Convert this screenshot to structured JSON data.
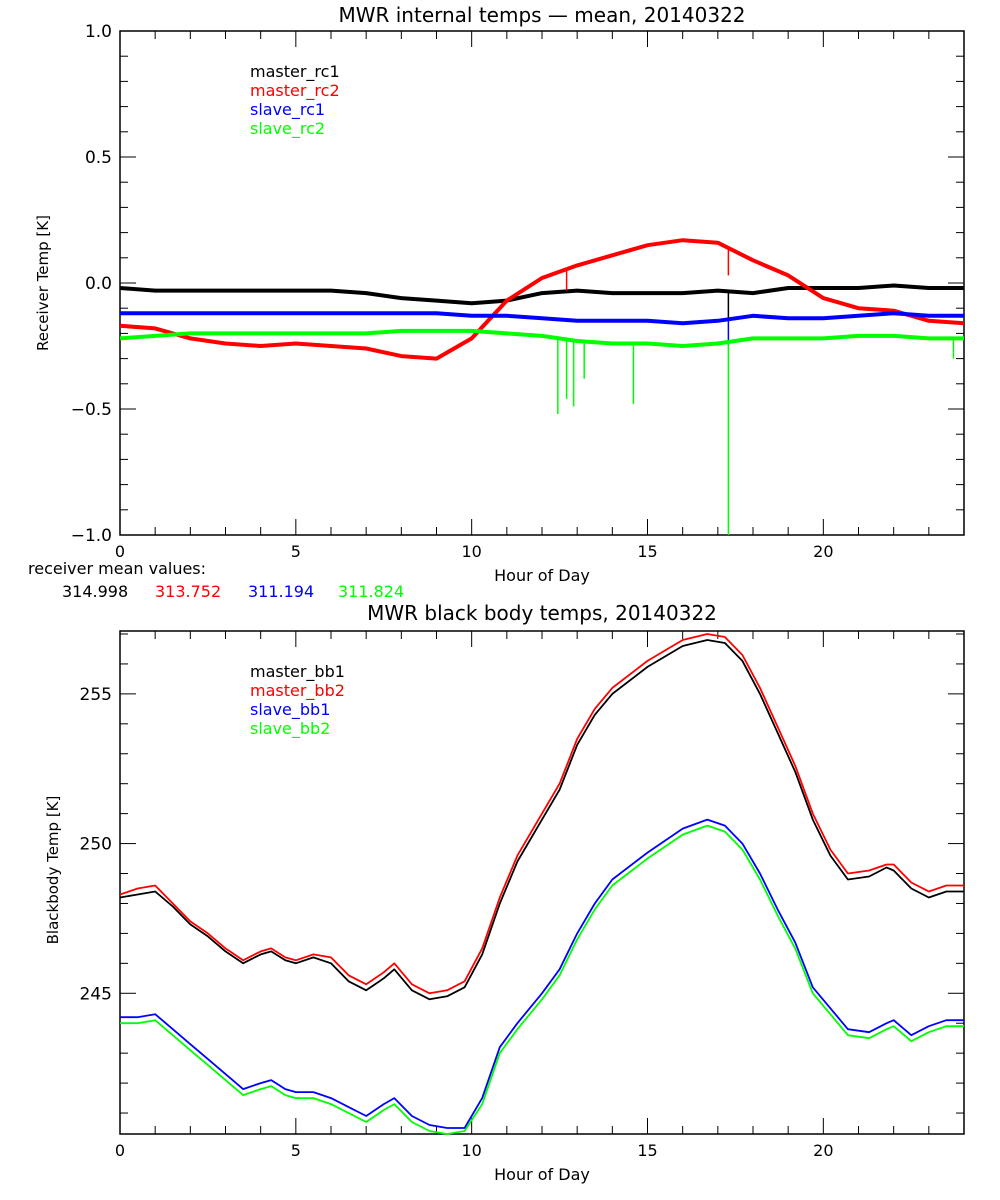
{
  "chart_data": [
    {
      "type": "line",
      "title": "MWR internal temps — mean, 20140322",
      "xlabel": "Hour of Day",
      "ylabel": "Receiver Temp [K]",
      "xlim": [
        0,
        24
      ],
      "ylim": [
        -1.0,
        1.0
      ],
      "xticks": [
        0,
        5,
        10,
        15,
        20
      ],
      "xtick_labels": [
        "0",
        "5",
        "10",
        "15",
        "20"
      ],
      "yticks": [
        -1.0,
        -0.5,
        0.0,
        0.5,
        1.0
      ],
      "ytick_labels": [
        "−1.0",
        "−0.5",
        "0.0",
        "0.5",
        "1.0"
      ],
      "grid": false,
      "legend_position": "top-left",
      "x": [
        0,
        1,
        2,
        3,
        4,
        5,
        6,
        7,
        8,
        9,
        10,
        11,
        12,
        13,
        14,
        15,
        16,
        17,
        18,
        19,
        20,
        21,
        22,
        23,
        24
      ],
      "series": [
        {
          "name": "master_rc1",
          "color": "#000000",
          "values": [
            -0.02,
            -0.03,
            -0.03,
            -0.03,
            -0.03,
            -0.03,
            -0.03,
            -0.04,
            -0.06,
            -0.07,
            -0.08,
            -0.07,
            -0.04,
            -0.03,
            -0.04,
            -0.04,
            -0.04,
            -0.03,
            -0.04,
            -0.02,
            -0.02,
            -0.02,
            -0.01,
            -0.02,
            -0.02
          ],
          "spikes": [
            {
              "x": 17.3,
              "y": -0.15
            }
          ]
        },
        {
          "name": "master_rc2",
          "color": "#ff0000",
          "values": [
            -0.17,
            -0.18,
            -0.22,
            -0.24,
            -0.25,
            -0.24,
            -0.25,
            -0.26,
            -0.29,
            -0.3,
            -0.22,
            -0.07,
            0.02,
            0.07,
            0.11,
            0.15,
            0.17,
            0.16,
            0.09,
            0.03,
            -0.06,
            -0.1,
            -0.11,
            -0.15,
            -0.16
          ],
          "spikes": [
            {
              "x": 17.3,
              "y": 0.03
            },
            {
              "x": 12.7,
              "y": -0.03
            }
          ]
        },
        {
          "name": "slave_rc1",
          "color": "#0000ff",
          "values": [
            -0.12,
            -0.12,
            -0.12,
            -0.12,
            -0.12,
            -0.12,
            -0.12,
            -0.12,
            -0.12,
            -0.12,
            -0.13,
            -0.13,
            -0.14,
            -0.15,
            -0.15,
            -0.15,
            -0.16,
            -0.15,
            -0.13,
            -0.14,
            -0.14,
            -0.13,
            -0.12,
            -0.13,
            -0.13
          ],
          "spikes": [
            {
              "x": 17.3,
              "y": -0.25
            }
          ]
        },
        {
          "name": "slave_rc2",
          "color": "#00ff00",
          "values": [
            -0.22,
            -0.21,
            -0.2,
            -0.2,
            -0.2,
            -0.2,
            -0.2,
            -0.2,
            -0.19,
            -0.19,
            -0.19,
            -0.2,
            -0.21,
            -0.23,
            -0.24,
            -0.24,
            -0.25,
            -0.24,
            -0.22,
            -0.22,
            -0.22,
            -0.21,
            -0.21,
            -0.22,
            -0.22
          ],
          "spikes": [
            {
              "x": 12.45,
              "y": -0.52
            },
            {
              "x": 12.7,
              "y": -0.46
            },
            {
              "x": 12.9,
              "y": -0.49
            },
            {
              "x": 13.2,
              "y": -0.38
            },
            {
              "x": 14.6,
              "y": -0.48
            },
            {
              "x": 17.3,
              "y": -1.0
            },
            {
              "x": 23.7,
              "y": -0.3
            }
          ]
        }
      ],
      "annotations": {
        "label": "receiver mean values:",
        "values": [
          {
            "text": "314.998",
            "color": "#000000"
          },
          {
            "text": "313.752",
            "color": "#ff0000"
          },
          {
            "text": "311.194",
            "color": "#0000ff"
          },
          {
            "text": "311.824",
            "color": "#00ff00"
          }
        ]
      }
    },
    {
      "type": "line",
      "title": "MWR black body temps, 20140322",
      "xlabel": "Hour of Day",
      "ylabel": "Blackbody Temp [K]",
      "xlim": [
        0,
        24
      ],
      "ylim": [
        240.3,
        257.1
      ],
      "xticks": [
        0,
        5,
        10,
        15,
        20
      ],
      "xtick_labels": [
        "0",
        "5",
        "10",
        "15",
        "20"
      ],
      "yticks": [
        245,
        250,
        255
      ],
      "ytick_labels": [
        "245",
        "250",
        "255"
      ],
      "grid": false,
      "legend_position": "top-left",
      "x": [
        0,
        0.5,
        1,
        1.5,
        2,
        2.5,
        3,
        3.5,
        4,
        4.3,
        4.7,
        5,
        5.5,
        6,
        6.5,
        7,
        7.5,
        7.8,
        8.3,
        8.8,
        9.3,
        9.8,
        10.3,
        10.8,
        11.3,
        12,
        12.5,
        13,
        13.5,
        14,
        15,
        16,
        16.7,
        17.2,
        17.7,
        18.2,
        18.7,
        19.2,
        19.7,
        20.2,
        20.7,
        21.3,
        21.8,
        22,
        22.5,
        23,
        23.5,
        24
      ],
      "series": [
        {
          "name": "master_bb1",
          "color": "#000000",
          "values": [
            248.2,
            248.3,
            248.4,
            247.9,
            247.3,
            246.9,
            246.4,
            246.0,
            246.3,
            246.4,
            246.1,
            246.0,
            246.2,
            246.0,
            245.4,
            245.1,
            245.5,
            245.8,
            245.1,
            244.8,
            244.9,
            245.2,
            246.3,
            248.0,
            249.4,
            250.8,
            251.8,
            253.3,
            254.3,
            255.0,
            255.9,
            256.6,
            256.8,
            256.7,
            256.1,
            255.0,
            253.7,
            252.4,
            250.8,
            249.6,
            248.8,
            248.9,
            249.2,
            249.1,
            248.5,
            248.2,
            248.4,
            248.4
          ]
        },
        {
          "name": "master_bb2",
          "color": "#ff0000",
          "values": [
            248.3,
            248.5,
            248.6,
            248.0,
            247.4,
            247.0,
            246.5,
            246.1,
            246.4,
            246.5,
            246.2,
            246.1,
            246.3,
            246.2,
            245.6,
            245.3,
            245.7,
            246.0,
            245.3,
            245.0,
            245.1,
            245.4,
            246.5,
            248.2,
            249.6,
            251.0,
            252.0,
            253.5,
            254.5,
            255.2,
            256.1,
            256.8,
            257.0,
            256.9,
            256.3,
            255.2,
            253.9,
            252.6,
            251.0,
            249.8,
            249.0,
            249.1,
            249.3,
            249.3,
            248.7,
            248.4,
            248.6,
            248.6
          ]
        },
        {
          "name": "slave_bb1",
          "color": "#0000ff",
          "values": [
            244.2,
            244.2,
            244.3,
            243.8,
            243.3,
            242.8,
            242.3,
            241.8,
            242.0,
            242.1,
            241.8,
            241.7,
            241.7,
            241.5,
            241.2,
            240.9,
            241.3,
            241.5,
            240.9,
            240.6,
            240.5,
            240.5,
            241.5,
            243.2,
            244.0,
            245.0,
            245.8,
            247.0,
            248.0,
            248.8,
            249.7,
            250.5,
            250.8,
            250.6,
            250.0,
            249.0,
            247.8,
            246.7,
            245.2,
            244.5,
            243.8,
            243.7,
            244.0,
            244.1,
            243.6,
            243.9,
            244.1,
            244.1
          ]
        },
        {
          "name": "slave_bb2",
          "color": "#00ff00",
          "values": [
            244.0,
            244.0,
            244.1,
            243.6,
            243.1,
            242.6,
            242.1,
            241.6,
            241.8,
            241.9,
            241.6,
            241.5,
            241.5,
            241.3,
            241.0,
            240.7,
            241.1,
            241.3,
            240.7,
            240.4,
            240.3,
            240.4,
            241.3,
            243.0,
            243.8,
            244.8,
            245.6,
            246.8,
            247.8,
            248.6,
            249.5,
            250.3,
            250.6,
            250.4,
            249.8,
            248.8,
            247.6,
            246.5,
            245.0,
            244.3,
            243.6,
            243.5,
            243.8,
            243.9,
            243.4,
            243.7,
            243.9,
            243.9
          ]
        }
      ]
    }
  ]
}
